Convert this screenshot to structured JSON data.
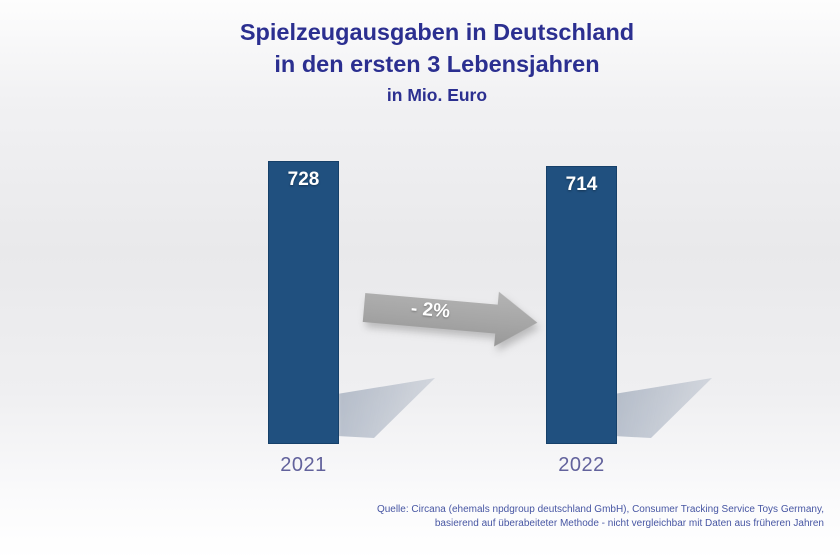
{
  "title": {
    "line1": "Spielzeugausgaben in Deutschland",
    "line2": "in den ersten 3 Lebensjahren",
    "line3": "in Mio. Euro"
  },
  "chart_data": {
    "type": "bar",
    "categories": [
      "2021",
      "2022"
    ],
    "values": [
      728,
      714
    ],
    "title": "Spielzeugausgaben in Deutschland in den ersten 3 Lebensjahren",
    "unit_label": "in Mio. Euro",
    "change_label": "- 2%",
    "xlabel": "",
    "ylabel": "",
    "ylim": [
      0,
      750
    ],
    "grid": false,
    "legend": "none",
    "bar_color": "#20507F",
    "value_labels_inside_bar": true
  },
  "source": {
    "line1": "Quelle: Circana (ehemals npdgroup deutschland GmbH), Consumer Tracking Service Toys Germany,",
    "line2": "basierend auf überabeiteter Methode - nicht vergleichbar mit Daten aus früheren Jahren"
  },
  "colors": {
    "title_text": "#2B2F90",
    "bar_fill": "#20507F",
    "bar_value_text": "#FFFFFF",
    "year_label_text": "#62629C",
    "source_text": "#4756A3",
    "arrow_fill": "#A6A6A6",
    "arrow_text": "#FFFFFF"
  }
}
